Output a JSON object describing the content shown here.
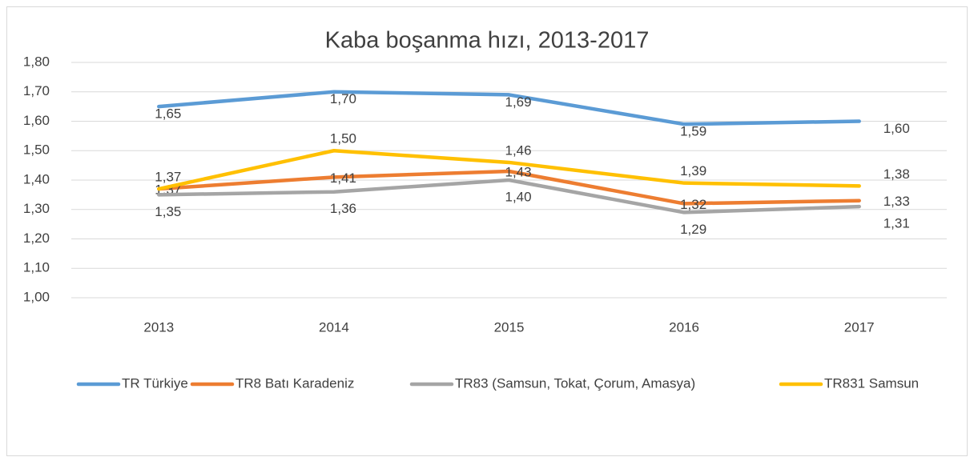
{
  "chart_data": {
    "type": "line",
    "title": "Kaba boşanma hızı, 2013-2017",
    "categories": [
      "2013",
      "2014",
      "2015",
      "2016",
      "2017"
    ],
    "series": [
      {
        "name": "TR Türkiye",
        "color": "#5b9bd5",
        "values": [
          1.65,
          1.7,
          1.69,
          1.59,
          1.6
        ],
        "value_labels": [
          "1,65",
          "1,70",
          "1,69",
          "1,59",
          "1,60"
        ]
      },
      {
        "name": "TR8 Batı Karadeniz",
        "color": "#ed7d31",
        "values": [
          1.37,
          1.41,
          1.43,
          1.32,
          1.33
        ],
        "value_labels": [
          "1,37",
          "1,41",
          "1,43",
          "1,32",
          "1,33"
        ]
      },
      {
        "name": "TR83 (Samsun, Tokat, Çorum, Amasya)",
        "color": "#a5a5a5",
        "values": [
          1.35,
          1.36,
          1.4,
          1.29,
          1.31
        ],
        "value_labels": [
          "1,35",
          "1,36",
          "1,40",
          "1,29",
          "1,31"
        ]
      },
      {
        "name": "TR831 Samsun",
        "color": "#ffc000",
        "values": [
          1.37,
          1.5,
          1.46,
          1.39,
          1.38
        ],
        "value_labels": [
          "1,37",
          "1,50",
          "1,46",
          "1,39",
          "1,38"
        ]
      }
    ],
    "ylim": [
      1.0,
      1.8
    ],
    "yticks": [
      {
        "value": 1.0,
        "label": "1,00"
      },
      {
        "value": 1.1,
        "label": "1,10"
      },
      {
        "value": 1.2,
        "label": "1,20"
      },
      {
        "value": 1.3,
        "label": "1,30"
      },
      {
        "value": 1.4,
        "label": "1,40"
      },
      {
        "value": 1.5,
        "label": "1,50"
      },
      {
        "value": 1.6,
        "label": "1,60"
      },
      {
        "value": 1.7,
        "label": "1,70"
      },
      {
        "value": 1.8,
        "label": "1,80"
      }
    ],
    "grid": true,
    "legend": "bottom"
  }
}
